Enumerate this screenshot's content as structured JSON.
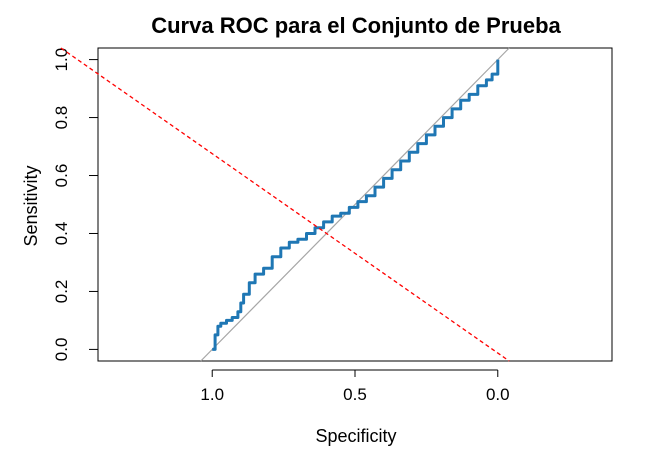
{
  "chart_data": {
    "type": "line",
    "title": "Curva ROC para el Conjunto de Prueba",
    "xlabel": "Specificity",
    "ylabel": "Sensitivity",
    "x_reversed": true,
    "xlim": [
      1.4,
      -0.4
    ],
    "ylim": [
      -0.04,
      1.04
    ],
    "x_ticks": [
      1.0,
      0.5,
      0.0
    ],
    "x_tick_labels": [
      "1.0",
      "0.5",
      "0.0"
    ],
    "y_ticks": [
      0.0,
      0.2,
      0.4,
      0.6,
      0.8,
      1.0
    ],
    "y_tick_labels": [
      "0.0",
      "0.2",
      "0.4",
      "0.6",
      "0.8",
      "1.0"
    ],
    "grid": false,
    "series": [
      {
        "style": "roc-curve",
        "color": "#1f77b4",
        "x": [
          1.0,
          0.99,
          0.98,
          0.97,
          0.95,
          0.93,
          0.91,
          0.9,
          0.89,
          0.87,
          0.85,
          0.82,
          0.79,
          0.76,
          0.73,
          0.7,
          0.67,
          0.64,
          0.61,
          0.58,
          0.55,
          0.52,
          0.49,
          0.46,
          0.43,
          0.4,
          0.37,
          0.34,
          0.31,
          0.28,
          0.25,
          0.22,
          0.19,
          0.16,
          0.13,
          0.1,
          0.07,
          0.04,
          0.02,
          0.0,
          0.0
        ],
        "y": [
          0.0,
          0.05,
          0.08,
          0.09,
          0.1,
          0.11,
          0.13,
          0.16,
          0.19,
          0.23,
          0.26,
          0.28,
          0.32,
          0.35,
          0.37,
          0.38,
          0.4,
          0.42,
          0.44,
          0.46,
          0.47,
          0.49,
          0.51,
          0.53,
          0.56,
          0.59,
          0.62,
          0.65,
          0.68,
          0.71,
          0.74,
          0.77,
          0.8,
          0.83,
          0.86,
          0.88,
          0.91,
          0.93,
          0.95,
          0.97,
          1.0
        ]
      },
      {
        "style": "diagonal-reference",
        "color": "#a6a6a6",
        "x": [
          1.04,
          -0.04
        ],
        "y": [
          -0.04,
          1.04
        ]
      },
      {
        "style": "threshold-line",
        "color": "#ff0000",
        "x": [
          1.53,
          -0.04
        ],
        "y": [
          1.04,
          -0.04
        ]
      }
    ]
  }
}
